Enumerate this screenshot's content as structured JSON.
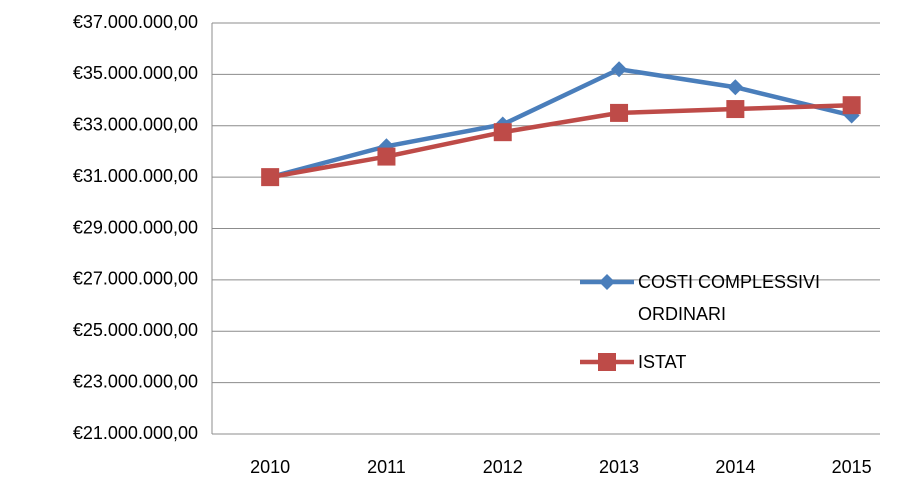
{
  "chart_data": {
    "type": "line",
    "categories": [
      "2010",
      "2011",
      "2012",
      "2013",
      "2014",
      "2015"
    ],
    "series": [
      {
        "name": "COSTI COMPLESSIVI ORDINARI",
        "color": "#4a7ebb",
        "marker": "diamond",
        "values": [
          31000000,
          32200000,
          33050000,
          35200000,
          34500000,
          33400000
        ]
      },
      {
        "name": "ISTAT",
        "color": "#be4b48",
        "marker": "square",
        "values": [
          31000000,
          31800000,
          32750000,
          33500000,
          33650000,
          33800000
        ]
      }
    ],
    "ylim": [
      21000000,
      37000000
    ],
    "yticks": [
      {
        "value": 21000000,
        "label": "€21.000.000,00"
      },
      {
        "value": 23000000,
        "label": "€23.000.000,00"
      },
      {
        "value": 25000000,
        "label": "€25.000.000,00"
      },
      {
        "value": 27000000,
        "label": "€27.000.000,00"
      },
      {
        "value": 29000000,
        "label": "€29.000.000,00"
      },
      {
        "value": 31000000,
        "label": "€31.000.000,00"
      },
      {
        "value": 33000000,
        "label": "€33.000.000,00"
      },
      {
        "value": 35000000,
        "label": "€35.000.000,00"
      },
      {
        "value": 37000000,
        "label": "€37.000.000,00"
      }
    ],
    "grid": true,
    "legend": "right"
  }
}
